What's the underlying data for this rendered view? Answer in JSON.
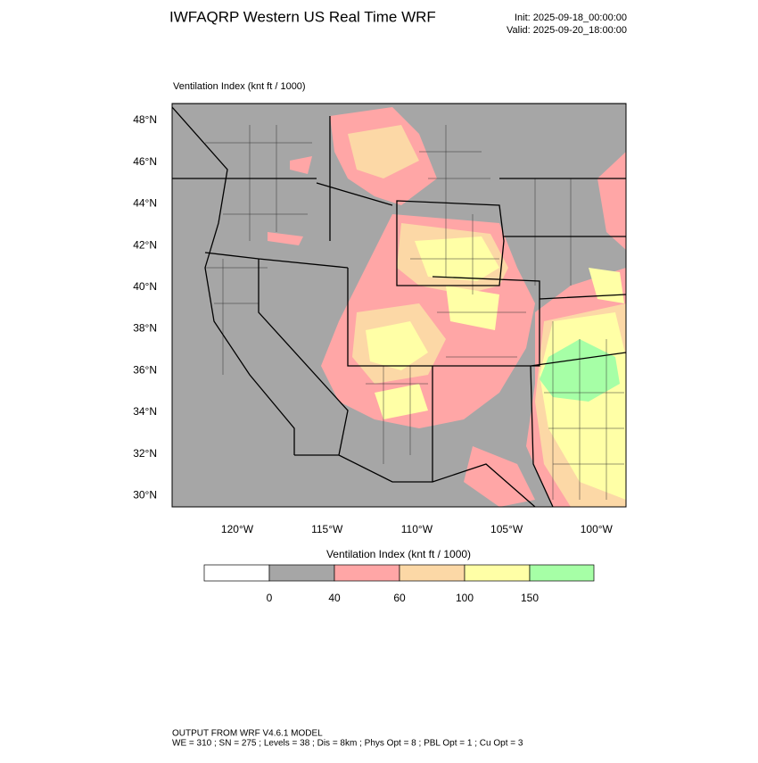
{
  "header": {
    "title": "IWFAQRP Western US Real Time WRF",
    "init": "Init: 2025-09-18_00:00:00",
    "valid": "Valid: 2025-09-20_18:00:00"
  },
  "plot": {
    "subtitle": "Ventilation Index   (knt ft / 1000)",
    "lat_labels": [
      "48°N",
      "46°N",
      "44°N",
      "42°N",
      "40°N",
      "38°N",
      "36°N",
      "34°N",
      "32°N",
      "30°N"
    ],
    "lon_labels": [
      "120°W",
      "115°W",
      "110°W",
      "105°W",
      "100°W"
    ]
  },
  "colorbar": {
    "title": "Ventilation Index  (knt ft / 1000)",
    "labels": [
      "0",
      "40",
      "60",
      "100",
      "150"
    ]
  },
  "footer": {
    "line1": "OUTPUT FROM WRF V4.6.1 MODEL",
    "line2": "WE = 310 ; SN = 275 ; Levels = 38 ; Dis = 8km ; Phys Opt = 8 ; PBL Opt = 1 ; Cu Opt = 3"
  }
}
